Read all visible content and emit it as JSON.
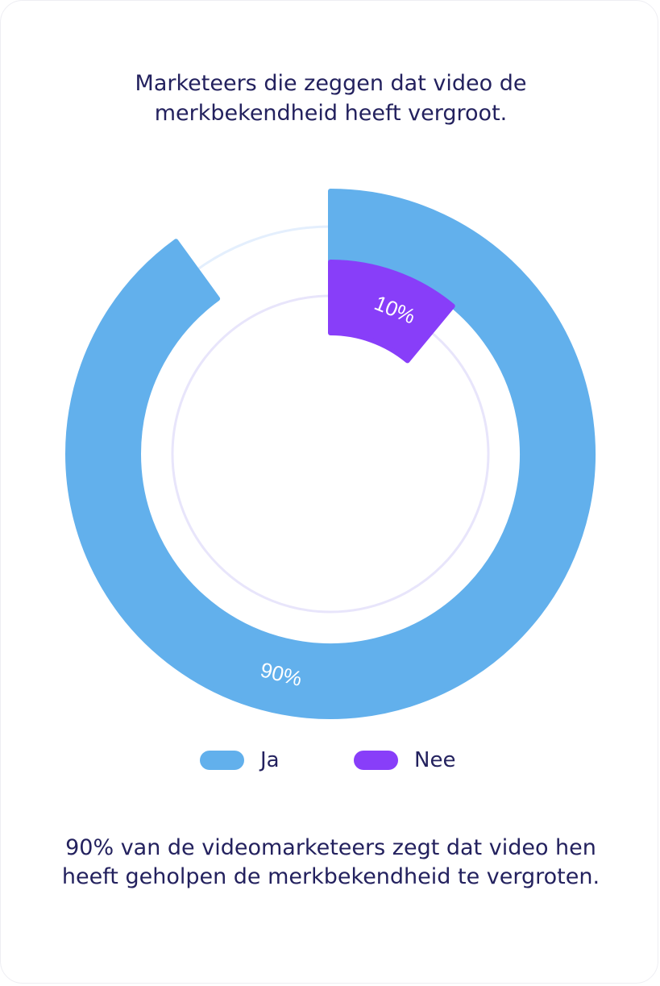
{
  "title": "Marketeers die zeggen dat video de merkbekendheid heeft vergroot.",
  "caption": "90% van de videomarketeers zegt dat video hen heeft geholpen de merkbekendheid te vergroten.",
  "colors": {
    "ja": "#62b0ec",
    "nee": "#883ef9",
    "text": "#23215e",
    "track_outer": "#e4effd",
    "track_inner": "#e8e5fb"
  },
  "chart_data": {
    "type": "pie",
    "title": "Marketeers die zeggen dat video de merkbekendheid heeft vergroot.",
    "legend_position": "bottom",
    "series": [
      {
        "name": "Ja",
        "value": 90,
        "label": "90%"
      },
      {
        "name": "Nee",
        "value": 10,
        "label": "10%"
      }
    ]
  }
}
